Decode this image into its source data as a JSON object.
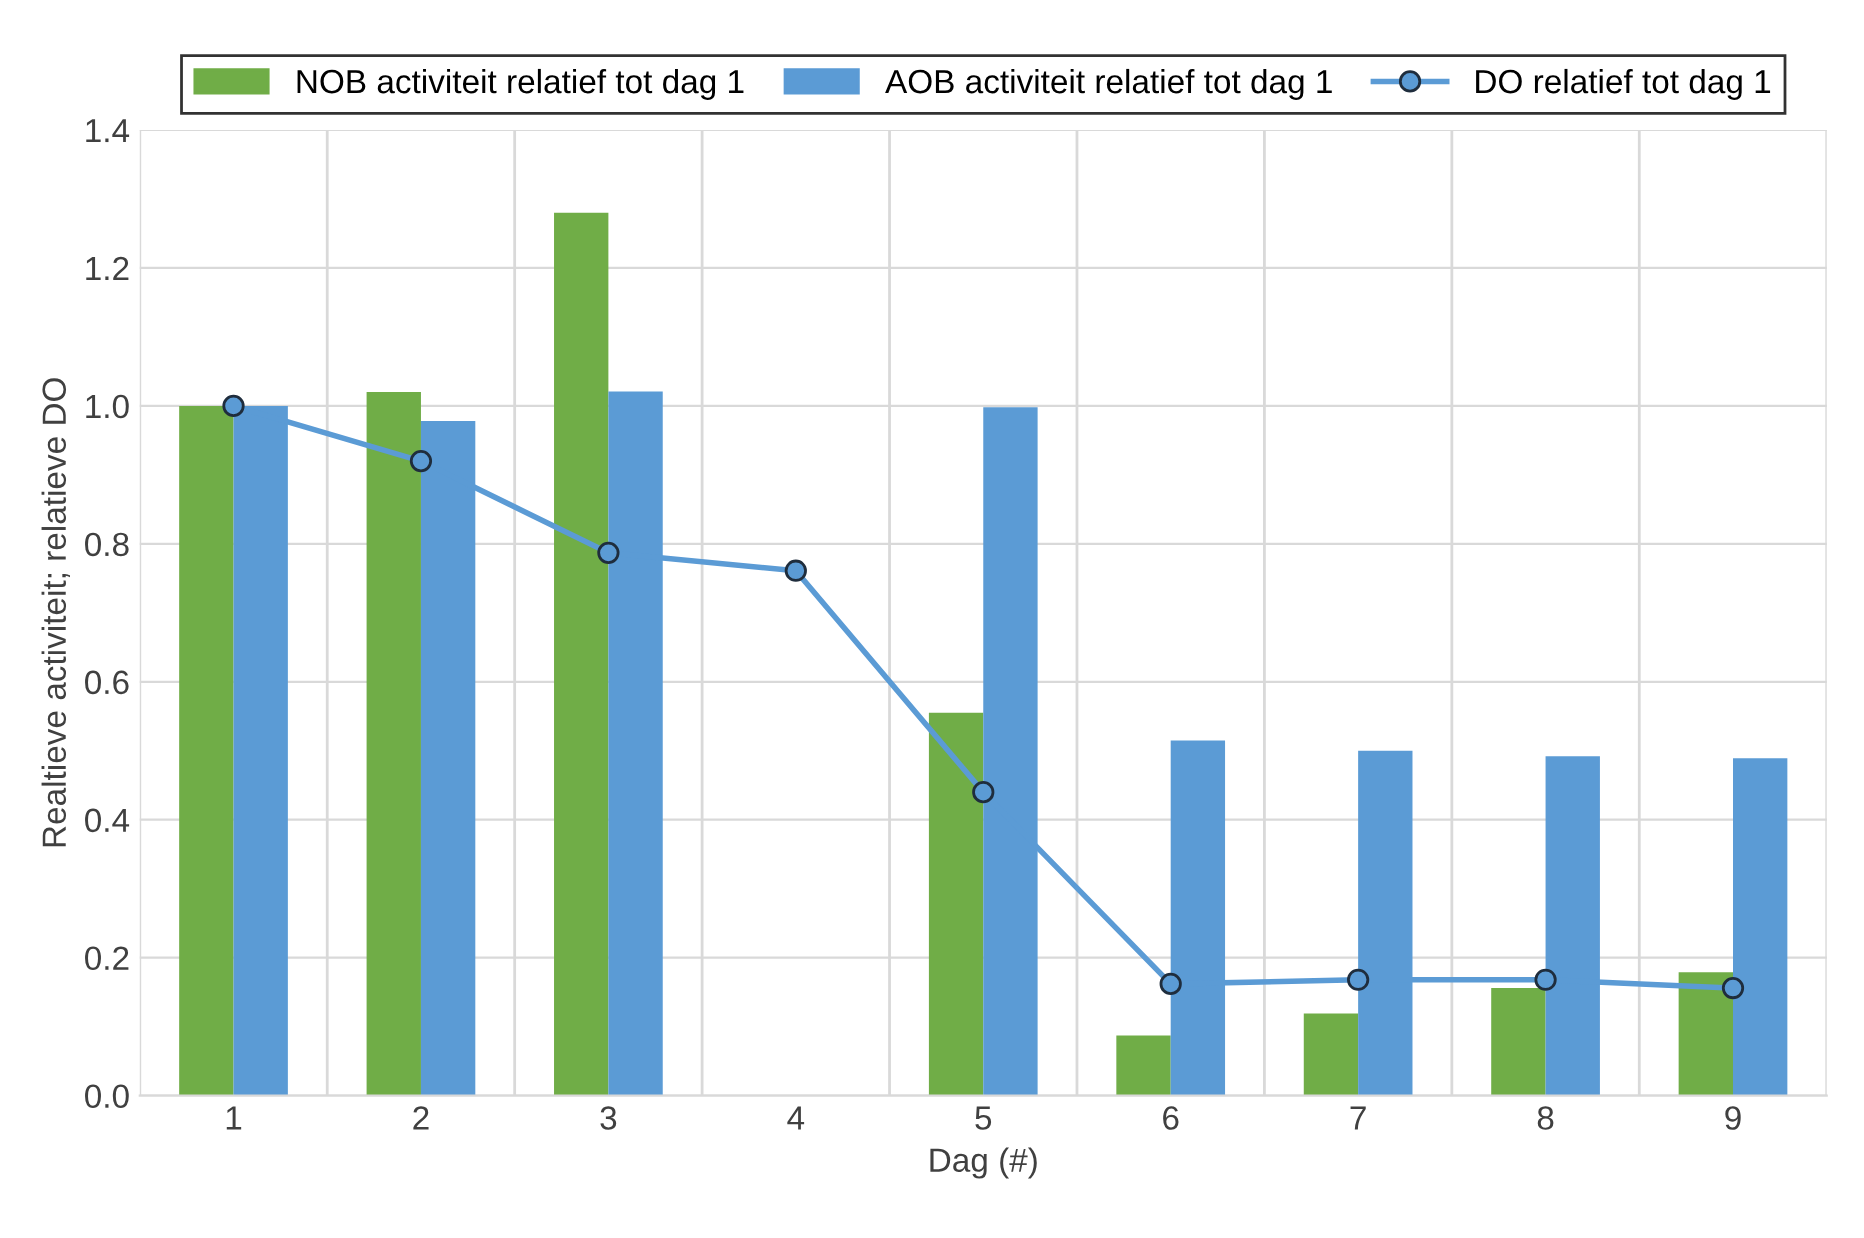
{
  "chart_data": {
    "type": "bar",
    "xlabel": "Dag (#)",
    "ylabel": "Realtieve activiteit; relatieve DO",
    "categories": [
      "1",
      "2",
      "3",
      "4",
      "5",
      "6",
      "7",
      "8",
      "9"
    ],
    "series": [
      {
        "name": "NOB activiteit relatief tot dag 1",
        "color": "#70ad47",
        "values": [
          1.0,
          1.02,
          1.28,
          null,
          0.555,
          0.087,
          0.119,
          0.156,
          0.179
        ]
      },
      {
        "name": "AOB activiteit relatief tot dag 1",
        "color": "#5b9bd5",
        "values": [
          1.0,
          0.978,
          1.021,
          null,
          0.998,
          0.515,
          0.5,
          0.492,
          0.489
        ]
      },
      {
        "name": "DO relatief tot dag 1",
        "color": "#5b9bd5",
        "type": "line",
        "marker": "circle",
        "values": [
          1.0,
          0.92,
          0.787,
          0.761,
          0.44,
          0.162,
          0.168,
          0.168,
          0.156
        ]
      }
    ],
    "ylim": [
      0,
      1.4
    ],
    "yticks": [
      {
        "value": 0,
        "label": "0.0"
      },
      {
        "value": 0.2,
        "label": "0.2"
      },
      {
        "value": 0.4,
        "label": "0.4"
      },
      {
        "value": 0.6,
        "label": "0.6"
      },
      {
        "value": 0.8,
        "label": "0.8"
      },
      {
        "value": 1.0,
        "label": "1.0"
      },
      {
        "value": 1.2,
        "label": "1.2"
      },
      {
        "value": 1.4,
        "label": "1.4"
      }
    ],
    "grid": true,
    "legend": "top"
  }
}
